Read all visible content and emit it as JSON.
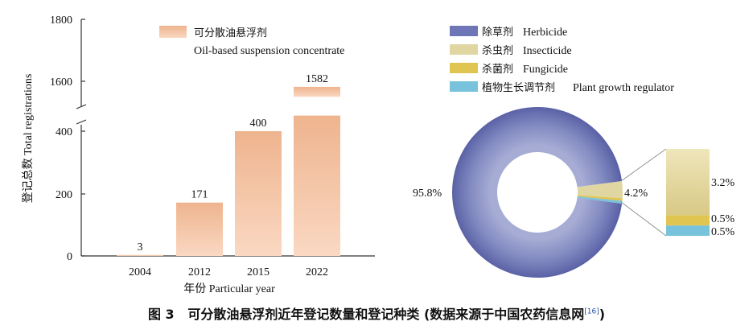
{
  "chart_data": [
    {
      "type": "bar",
      "title": "",
      "categories": [
        "2004",
        "2012",
        "2015",
        "2022"
      ],
      "values": [
        3,
        171,
        400,
        1582
      ],
      "series_name_cn": "可分散油悬浮剂",
      "series_name_en": "Oil-based suspension concentrate",
      "xlabel": "年份 Particular year",
      "ylabel": "登记总数 Total registrations",
      "yaxis_lower_ticks": [
        "0",
        "200",
        "400"
      ],
      "yaxis_upper_ticks": [
        "1600",
        "1800"
      ],
      "ylim_lower": [
        0,
        450
      ],
      "ylim_upper": [
        1550,
        1800
      ],
      "axis_break": true,
      "colors": {
        "bar_top": "#eeb48e",
        "bar_bottom": "#fad8c2",
        "axis": "#333333"
      }
    },
    {
      "type": "pie",
      "subtype": "donut",
      "slices": [
        {
          "key": "herbicide",
          "cn": "除草剂",
          "en": "Herbicide",
          "value": 95.8,
          "color": "#6f76b8"
        },
        {
          "key": "insecticide",
          "cn": "杀虫剂",
          "en": "Insecticide",
          "value": 3.2,
          "color": "#e0d6a2"
        },
        {
          "key": "fungicide",
          "cn": "杀菌剂",
          "en": "Fungicide",
          "value": 0.5,
          "color": "#e0c550"
        },
        {
          "key": "pgr",
          "cn": "植物生长调节剂",
          "en": "Plant growth regulator",
          "value": 0.5,
          "color": "#79c2dc"
        }
      ],
      "main_label": "95.8%",
      "others_label": "4.2%",
      "detail_labels": [
        "3.2%",
        "0.5%",
        "0.5%"
      ]
    }
  ],
  "caption": {
    "prefix": "图 3",
    "text": "可分散油悬浮剂近年登记数量和登记种类 (数据来源于中国农药信息网",
    "ref": "[16]",
    "suffix": ")"
  }
}
